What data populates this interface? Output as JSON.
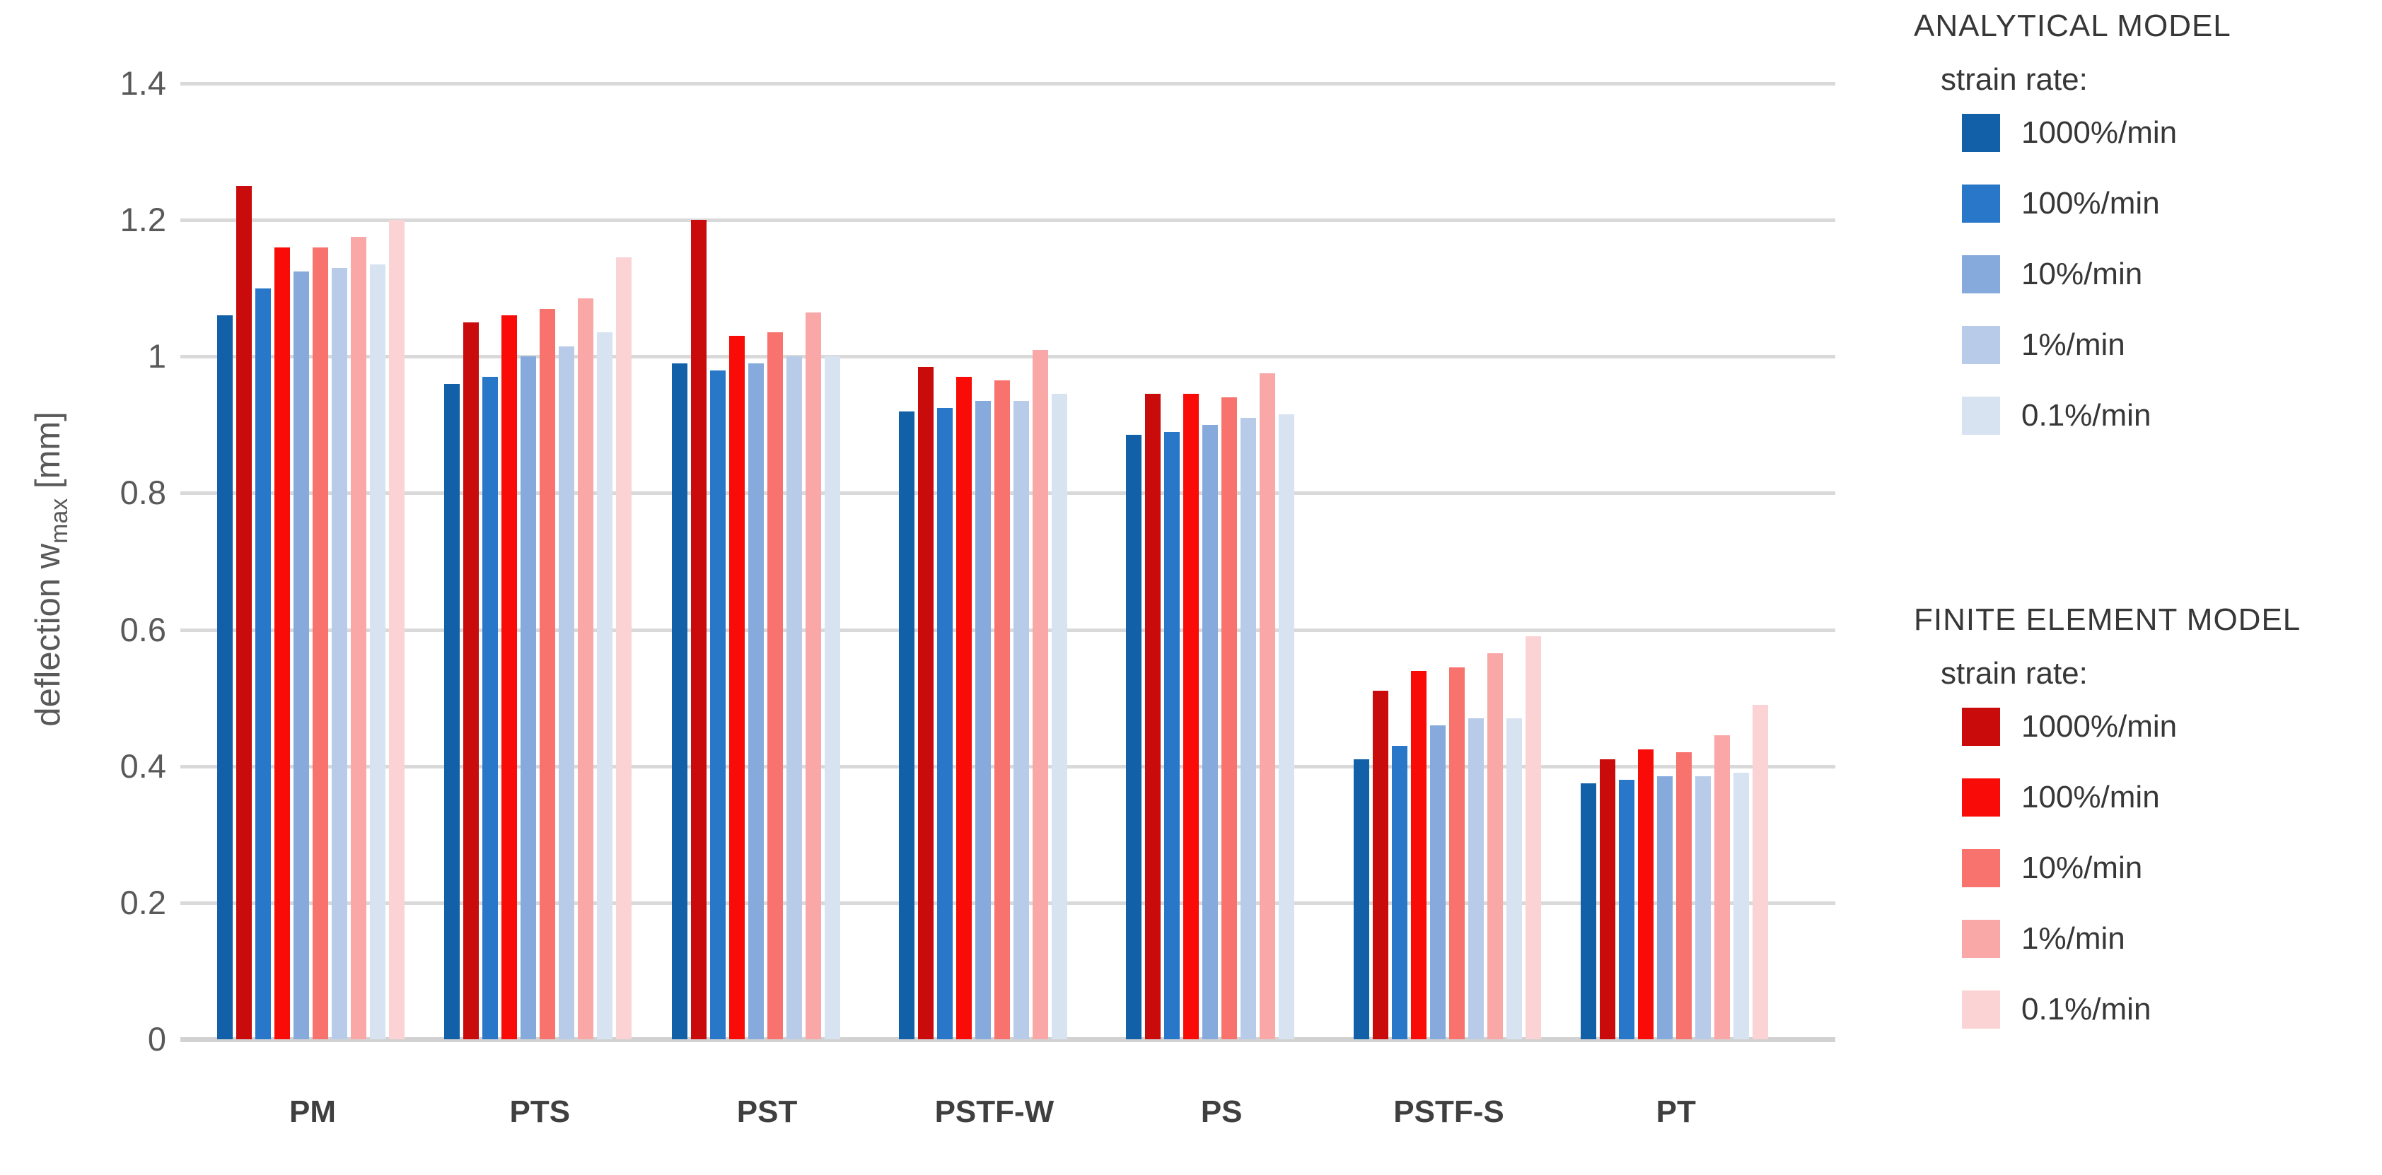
{
  "chart_data": {
    "type": "bar",
    "title": "",
    "xlabel": "",
    "ylabel_pre": "deflection w",
    "ylabel_sub": "max",
    "ylabel_post": " [mm]",
    "ylim": [
      0,
      1.4
    ],
    "ytick_step": 0.2,
    "yticks": [
      "0",
      "0.2",
      "0.4",
      "0.6",
      "0.8",
      "1",
      "1.2",
      "1.4"
    ],
    "grid": true,
    "legend_position": "right",
    "categories": [
      "PM",
      "PTS",
      "PST",
      "PSTF-W",
      "PS",
      "PSTF-S",
      "PT"
    ],
    "series": [
      {
        "name": "analytical-1000%/min",
        "model": "ANALYTICAL MODEL",
        "rate": "1000%/min",
        "color": "#1160A8",
        "values": [
          1.06,
          0.96,
          0.99,
          0.92,
          0.885,
          0.41,
          0.375
        ]
      },
      {
        "name": "fem-1000%/min",
        "model": "FINITE ELEMENT MODEL",
        "rate": "1000%/min",
        "color": "#C90B0B",
        "values": [
          1.25,
          1.05,
          1.2,
          0.985,
          0.945,
          0.51,
          0.41
        ]
      },
      {
        "name": "analytical-100%/min",
        "model": "ANALYTICAL MODEL",
        "rate": "100%/min",
        "color": "#2877C8",
        "values": [
          1.1,
          0.97,
          0.98,
          0.925,
          0.89,
          0.43,
          0.38
        ]
      },
      {
        "name": "fem-100%/min",
        "model": "FINITE ELEMENT MODEL",
        "rate": "100%/min",
        "color": "#F90B07",
        "values": [
          1.16,
          1.06,
          1.03,
          0.97,
          0.945,
          0.54,
          0.425
        ]
      },
      {
        "name": "analytical-10%/min",
        "model": "ANALYTICAL MODEL",
        "rate": "10%/min",
        "color": "#86AADB",
        "values": [
          1.125,
          1.0,
          0.99,
          0.935,
          0.9,
          0.46,
          0.385
        ]
      },
      {
        "name": "fem-10%/min",
        "model": "FINITE ELEMENT MODEL",
        "rate": "10%/min",
        "color": "#F8736E",
        "values": [
          1.16,
          1.07,
          1.035,
          0.965,
          0.94,
          0.545,
          0.42
        ]
      },
      {
        "name": "analytical-1%/min",
        "model": "ANALYTICAL MODEL",
        "rate": "1%/min",
        "color": "#B8CBE8",
        "values": [
          1.13,
          1.015,
          1.0,
          0.935,
          0.91,
          0.47,
          0.385
        ]
      },
      {
        "name": "fem-1%/min",
        "model": "FINITE ELEMENT MODEL",
        "rate": "1%/min",
        "color": "#FAA7A8",
        "values": [
          1.175,
          1.085,
          1.065,
          1.01,
          0.975,
          0.565,
          0.445
        ]
      },
      {
        "name": "analytical-0.1%/min",
        "model": "ANALYTICAL MODEL",
        "rate": "0.1%/min",
        "color": "#D8E3F2",
        "values": [
          1.135,
          1.035,
          1.0,
          0.945,
          0.915,
          0.47,
          0.39
        ]
      },
      {
        "name": "fem-0.1%/min",
        "model": "FINITE ELEMENT MODEL",
        "rate": "0.1%/min",
        "color": "#FBD3D5",
        "values": [
          1.2,
          1.145,
          null,
          null,
          null,
          0.59,
          0.49
        ]
      }
    ]
  },
  "legend": {
    "analytical": {
      "title": "ANALYTICAL MODEL",
      "subtitle": "strain rate:",
      "items": [
        {
          "label": "1000%/min",
          "color": "#1160A8"
        },
        {
          "label": "100%/min",
          "color": "#2877C8"
        },
        {
          "label": "10%/min",
          "color": "#86AADB"
        },
        {
          "label": "1%/min",
          "color": "#B8CBE8"
        },
        {
          "label": "0.1%/min",
          "color": "#D8E3F2"
        }
      ]
    },
    "fem": {
      "title": "FINITE ELEMENT MODEL",
      "subtitle": "strain rate:",
      "items": [
        {
          "label": "1000%/min",
          "color": "#C90B0B"
        },
        {
          "label": "100%/min",
          "color": "#F90B07"
        },
        {
          "label": "10%/min",
          "color": "#F8736E"
        },
        {
          "label": "1%/min",
          "color": "#FAA7A8"
        },
        {
          "label": "0.1%/min",
          "color": "#FBD3D5"
        }
      ]
    }
  },
  "layout_colors": {
    "gridline": "#d9d9d9",
    "baseline": "#d2d2d2",
    "tick_text": "#595959",
    "category_text": "#3f3f3f",
    "legend_text": "#373737"
  }
}
